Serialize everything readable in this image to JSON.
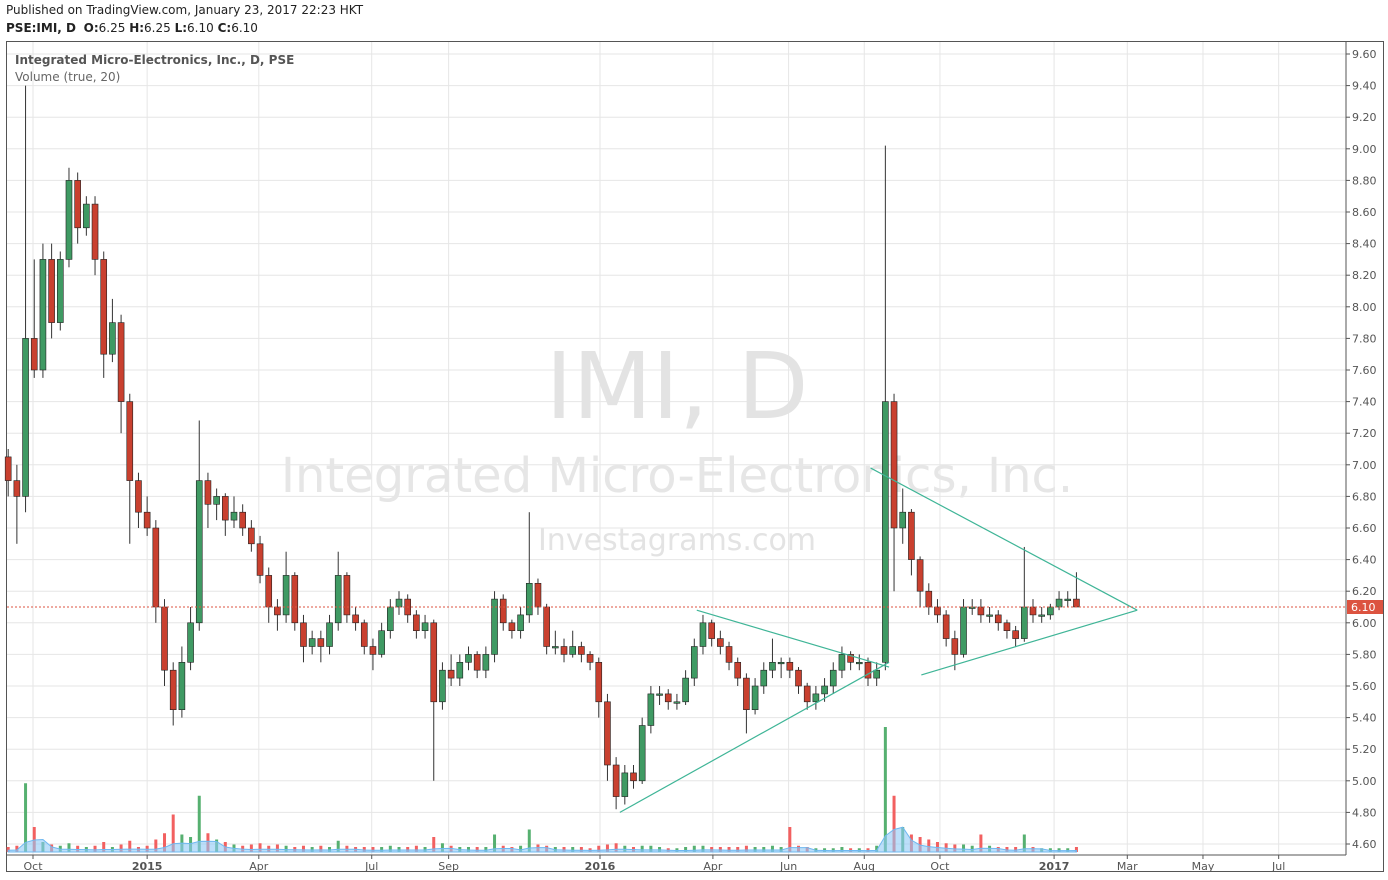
{
  "header": {
    "published": "Published on TradingView.com, January 23, 2017 22:23 HKT",
    "symbol": "PSE:IMI, D",
    "o_label": "O:",
    "o": "6.25",
    "h_label": "H:",
    "h": "6.25",
    "l_label": "L:",
    "l": "6.10",
    "c_label": "C:",
    "c": "6.10"
  },
  "legend": {
    "title": "Integrated Micro-Electronics, Inc., D, PSE",
    "volume": "Volume (true, 20)"
  },
  "watermark": {
    "symbol": "IMI, D",
    "name": "Integrated Micro-Electronics, Inc.",
    "site": "Investagrams.com"
  },
  "colors": {
    "up": "#3f9a63",
    "down": "#c9402f",
    "last_price": "#dc5340",
    "trendline": "#3fb597",
    "volume_ma": "#8fcaf7",
    "grid": "#e6e6e6"
  },
  "chart_data": {
    "type": "candlestick",
    "ylim": [
      4.5,
      9.65
    ],
    "y_ticks": [
      "4.60",
      "4.80",
      "5.00",
      "5.20",
      "5.40",
      "5.60",
      "5.80",
      "6.00",
      "6.20",
      "6.40",
      "6.60",
      "6.80",
      "7.00",
      "7.20",
      "7.40",
      "7.60",
      "7.80",
      "8.00",
      "8.20",
      "8.40",
      "8.60",
      "8.80",
      "9.00",
      "9.20",
      "9.40",
      "9.60"
    ],
    "x_ticks": [
      {
        "date": "2014-10-01",
        "label": "Oct",
        "bold": false
      },
      {
        "date": "2015-01-01",
        "label": "2015",
        "bold": true
      },
      {
        "date": "2015-04-01",
        "label": "Apr",
        "bold": false
      },
      {
        "date": "2015-07-01",
        "label": "Jul",
        "bold": false
      },
      {
        "date": "2015-09-01",
        "label": "Sep",
        "bold": false
      },
      {
        "date": "2016-01-01",
        "label": "2016",
        "bold": true
      },
      {
        "date": "2016-04-01",
        "label": "Apr",
        "bold": false
      },
      {
        "date": "2016-06-01",
        "label": "Jun",
        "bold": false
      },
      {
        "date": "2016-08-01",
        "label": "Aug",
        "bold": false
      },
      {
        "date": "2016-10-01",
        "label": "Oct",
        "bold": false
      },
      {
        "date": "2017-01-01",
        "label": "2017",
        "bold": true
      },
      {
        "date": "2017-03-01",
        "label": "Mar",
        "bold": false
      },
      {
        "date": "2017-05-01",
        "label": "May",
        "bold": false
      },
      {
        "date": "2017-07-01",
        "label": "Jul",
        "bold": false
      }
    ],
    "last_price": 6.1,
    "last_price_label": "6.10",
    "candle_fields": [
      "date",
      "open",
      "high",
      "low",
      "close",
      "volume_relative"
    ],
    "candles": [
      [
        "2014-09-11",
        7.05,
        7.1,
        6.8,
        6.9,
        4
      ],
      [
        "2014-09-18",
        6.9,
        7.0,
        6.5,
        6.8,
        5
      ],
      [
        "2014-09-25",
        6.8,
        9.4,
        6.7,
        7.8,
        55
      ],
      [
        "2014-10-02",
        7.8,
        8.3,
        7.55,
        7.6,
        20
      ],
      [
        "2014-10-09",
        7.6,
        8.4,
        7.55,
        8.3,
        8
      ],
      [
        "2014-10-16",
        8.3,
        8.4,
        7.8,
        7.9,
        6
      ],
      [
        "2014-10-23",
        7.9,
        8.35,
        7.85,
        8.3,
        5
      ],
      [
        "2014-10-30",
        8.3,
        8.88,
        8.25,
        8.8,
        7
      ],
      [
        "2014-11-06",
        8.8,
        8.85,
        8.4,
        8.5,
        5
      ],
      [
        "2014-11-13",
        8.5,
        8.7,
        8.45,
        8.65,
        4
      ],
      [
        "2014-11-20",
        8.65,
        8.7,
        8.2,
        8.3,
        5
      ],
      [
        "2014-11-27",
        8.3,
        8.35,
        7.55,
        7.7,
        8
      ],
      [
        "2014-12-04",
        7.7,
        8.05,
        7.65,
        7.9,
        4
      ],
      [
        "2014-12-11",
        7.9,
        7.95,
        7.2,
        7.4,
        6
      ],
      [
        "2014-12-18",
        7.4,
        7.45,
        6.5,
        6.9,
        9
      ],
      [
        "2014-12-25",
        6.9,
        6.95,
        6.6,
        6.7,
        4
      ],
      [
        "2015-01-01",
        6.7,
        6.8,
        6.55,
        6.6,
        5
      ],
      [
        "2015-01-08",
        6.6,
        6.65,
        6.0,
        6.1,
        10
      ],
      [
        "2015-01-15",
        6.1,
        6.15,
        5.6,
        5.7,
        15
      ],
      [
        "2015-01-22",
        5.7,
        5.75,
        5.35,
        5.45,
        30
      ],
      [
        "2015-01-29",
        5.45,
        5.85,
        5.4,
        5.75,
        14
      ],
      [
        "2015-02-05",
        5.75,
        6.1,
        5.7,
        6.0,
        12
      ],
      [
        "2015-02-12",
        6.0,
        7.28,
        5.95,
        6.9,
        45
      ],
      [
        "2015-02-19",
        6.9,
        6.95,
        6.6,
        6.75,
        15
      ],
      [
        "2015-02-26",
        6.75,
        6.85,
        6.65,
        6.8,
        10
      ],
      [
        "2015-03-05",
        6.8,
        6.82,
        6.55,
        6.65,
        8
      ],
      [
        "2015-03-12",
        6.65,
        6.8,
        6.6,
        6.7,
        6
      ],
      [
        "2015-03-19",
        6.7,
        6.75,
        6.55,
        6.6,
        5
      ],
      [
        "2015-03-26",
        6.6,
        6.65,
        6.45,
        6.5,
        6
      ],
      [
        "2015-04-02",
        6.5,
        6.55,
        6.25,
        6.3,
        7
      ],
      [
        "2015-04-09",
        6.3,
        6.35,
        6.0,
        6.1,
        5
      ],
      [
        "2015-04-16",
        6.1,
        6.15,
        5.95,
        6.05,
        6
      ],
      [
        "2015-04-23",
        6.05,
        6.45,
        6.0,
        6.3,
        5
      ],
      [
        "2015-04-30",
        6.3,
        6.32,
        5.95,
        6.0,
        4
      ],
      [
        "2015-05-07",
        6.0,
        6.05,
        5.75,
        5.85,
        5
      ],
      [
        "2015-05-14",
        5.85,
        5.95,
        5.8,
        5.9,
        4
      ],
      [
        "2015-05-21",
        5.9,
        5.95,
        5.75,
        5.85,
        5
      ],
      [
        "2015-05-28",
        5.85,
        6.05,
        5.8,
        6.0,
        4
      ],
      [
        "2015-06-04",
        6.0,
        6.45,
        5.95,
        6.3,
        9
      ],
      [
        "2015-06-11",
        6.3,
        6.32,
        6.0,
        6.05,
        5
      ],
      [
        "2015-06-18",
        6.05,
        6.1,
        5.95,
        6.0,
        4
      ],
      [
        "2015-06-25",
        6.0,
        6.02,
        5.8,
        5.85,
        4
      ],
      [
        "2015-07-02",
        5.85,
        5.9,
        5.7,
        5.8,
        4
      ],
      [
        "2015-07-09",
        5.8,
        6.0,
        5.78,
        5.95,
        4
      ],
      [
        "2015-07-16",
        5.95,
        6.15,
        5.9,
        6.1,
        5
      ],
      [
        "2015-07-23",
        6.1,
        6.2,
        6.05,
        6.15,
        4
      ],
      [
        "2015-07-30",
        6.15,
        6.18,
        6.0,
        6.05,
        4
      ],
      [
        "2015-08-06",
        6.05,
        6.08,
        5.9,
        5.95,
        5
      ],
      [
        "2015-08-13",
        5.95,
        6.05,
        5.9,
        6.0,
        4
      ],
      [
        "2015-08-20",
        6.0,
        6.02,
        5.0,
        5.5,
        12
      ],
      [
        "2015-08-27",
        5.5,
        5.75,
        5.45,
        5.7,
        7
      ],
      [
        "2015-09-03",
        5.7,
        5.8,
        5.6,
        5.65,
        5
      ],
      [
        "2015-09-10",
        5.65,
        5.8,
        5.6,
        5.75,
        4
      ],
      [
        "2015-09-17",
        5.75,
        5.85,
        5.7,
        5.8,
        4
      ],
      [
        "2015-09-24",
        5.8,
        5.82,
        5.65,
        5.7,
        4
      ],
      [
        "2015-10-01",
        5.7,
        5.85,
        5.65,
        5.8,
        4
      ],
      [
        "2015-10-08",
        5.8,
        6.2,
        5.75,
        6.15,
        14
      ],
      [
        "2015-10-15",
        6.15,
        6.18,
        5.95,
        6.0,
        5
      ],
      [
        "2015-10-22",
        6.0,
        6.02,
        5.9,
        5.95,
        4
      ],
      [
        "2015-10-29",
        5.95,
        6.1,
        5.9,
        6.05,
        5
      ],
      [
        "2015-11-05",
        6.05,
        6.7,
        6.0,
        6.25,
        18
      ],
      [
        "2015-11-12",
        6.25,
        6.28,
        6.05,
        6.1,
        6
      ],
      [
        "2015-11-19",
        6.1,
        6.12,
        5.8,
        5.85,
        5
      ],
      [
        "2015-11-26",
        5.85,
        5.95,
        5.8,
        5.85,
        4
      ],
      [
        "2015-12-03",
        5.85,
        5.9,
        5.75,
        5.8,
        4
      ],
      [
        "2015-12-10",
        5.8,
        5.95,
        5.78,
        5.85,
        4
      ],
      [
        "2015-12-17",
        5.85,
        5.88,
        5.75,
        5.8,
        4
      ],
      [
        "2015-12-24",
        5.8,
        5.82,
        5.7,
        5.75,
        3
      ],
      [
        "2015-12-31",
        5.75,
        5.78,
        5.4,
        5.5,
        5
      ],
      [
        "2016-01-07",
        5.5,
        5.55,
        5.0,
        5.1,
        6
      ],
      [
        "2016-01-14",
        5.1,
        5.15,
        4.82,
        4.9,
        7
      ],
      [
        "2016-01-21",
        4.9,
        5.1,
        4.85,
        5.05,
        5
      ],
      [
        "2016-01-28",
        5.05,
        5.1,
        4.95,
        5.0,
        4
      ],
      [
        "2016-02-04",
        5.0,
        5.4,
        4.98,
        5.35,
        5
      ],
      [
        "2016-02-11",
        5.35,
        5.6,
        5.3,
        5.55,
        5
      ],
      [
        "2016-02-18",
        5.55,
        5.6,
        5.48,
        5.55,
        4
      ],
      [
        "2016-02-25",
        5.55,
        5.58,
        5.45,
        5.5,
        3
      ],
      [
        "2016-03-03",
        5.5,
        5.55,
        5.45,
        5.5,
        3
      ],
      [
        "2016-03-10",
        5.5,
        5.7,
        5.48,
        5.65,
        4
      ],
      [
        "2016-03-17",
        5.65,
        5.9,
        5.6,
        5.85,
        5
      ],
      [
        "2016-03-24",
        5.85,
        6.05,
        5.8,
        6.0,
        5
      ],
      [
        "2016-03-31",
        6.0,
        6.02,
        5.85,
        5.9,
        4
      ],
      [
        "2016-04-07",
        5.9,
        5.95,
        5.8,
        5.85,
        4
      ],
      [
        "2016-04-14",
        5.85,
        5.88,
        5.7,
        5.75,
        4
      ],
      [
        "2016-04-21",
        5.75,
        5.78,
        5.6,
        5.65,
        4
      ],
      [
        "2016-04-28",
        5.65,
        5.68,
        5.3,
        5.45,
        5
      ],
      [
        "2016-05-05",
        5.45,
        5.65,
        5.42,
        5.6,
        4
      ],
      [
        "2016-05-12",
        5.6,
        5.75,
        5.55,
        5.7,
        4
      ],
      [
        "2016-05-19",
        5.7,
        5.9,
        5.65,
        5.75,
        5
      ],
      [
        "2016-05-26",
        5.75,
        5.78,
        5.65,
        5.75,
        4
      ],
      [
        "2016-06-02",
        5.75,
        5.78,
        5.65,
        5.7,
        20
      ],
      [
        "2016-06-09",
        5.7,
        5.72,
        5.55,
        5.6,
        5
      ],
      [
        "2016-06-16",
        5.6,
        5.62,
        5.45,
        5.5,
        4
      ],
      [
        "2016-06-23",
        5.5,
        5.6,
        5.45,
        5.55,
        3
      ],
      [
        "2016-06-30",
        5.55,
        5.65,
        5.5,
        5.6,
        3
      ],
      [
        "2016-07-07",
        5.6,
        5.75,
        5.55,
        5.7,
        3
      ],
      [
        "2016-07-14",
        5.7,
        5.85,
        5.65,
        5.8,
        4
      ],
      [
        "2016-07-21",
        5.8,
        5.82,
        5.7,
        5.75,
        3
      ],
      [
        "2016-07-28",
        5.75,
        5.8,
        5.7,
        5.75,
        3
      ],
      [
        "2016-08-04",
        5.75,
        5.78,
        5.6,
        5.65,
        3
      ],
      [
        "2016-08-11",
        5.65,
        5.75,
        5.6,
        5.7,
        5
      ],
      [
        "2016-08-18",
        5.75,
        9.02,
        5.7,
        7.4,
        100
      ],
      [
        "2016-08-25",
        7.4,
        7.45,
        6.2,
        6.6,
        45
      ],
      [
        "2016-09-01",
        6.6,
        6.85,
        6.5,
        6.7,
        20
      ],
      [
        "2016-09-08",
        6.7,
        6.72,
        6.3,
        6.4,
        14
      ],
      [
        "2016-09-15",
        6.4,
        6.42,
        6.1,
        6.2,
        12
      ],
      [
        "2016-09-22",
        6.2,
        6.25,
        6.05,
        6.1,
        10
      ],
      [
        "2016-09-29",
        6.1,
        6.15,
        6.0,
        6.05,
        8
      ],
      [
        "2016-10-06",
        6.05,
        6.08,
        5.85,
        5.9,
        7
      ],
      [
        "2016-10-13",
        5.9,
        5.95,
        5.7,
        5.8,
        6
      ],
      [
        "2016-10-20",
        5.8,
        6.15,
        5.78,
        6.1,
        6
      ],
      [
        "2016-10-27",
        6.1,
        6.15,
        6.05,
        6.1,
        5
      ],
      [
        "2016-11-03",
        6.1,
        6.15,
        6.0,
        6.05,
        14
      ],
      [
        "2016-11-10",
        6.05,
        6.1,
        6.0,
        6.05,
        5
      ],
      [
        "2016-11-17",
        6.05,
        6.08,
        5.95,
        6.0,
        4
      ],
      [
        "2016-11-24",
        6.0,
        6.02,
        5.9,
        5.95,
        4
      ],
      [
        "2016-12-01",
        5.95,
        5.98,
        5.85,
        5.9,
        4
      ],
      [
        "2016-12-08",
        5.9,
        6.48,
        5.88,
        6.1,
        14
      ],
      [
        "2016-12-15",
        6.1,
        6.15,
        6.0,
        6.05,
        4
      ],
      [
        "2016-12-22",
        6.05,
        6.1,
        6.0,
        6.05,
        3
      ],
      [
        "2016-12-29",
        6.05,
        6.12,
        6.02,
        6.1,
        3
      ],
      [
        "2017-01-05",
        6.1,
        6.2,
        6.08,
        6.15,
        3
      ],
      [
        "2017-01-12",
        6.15,
        6.2,
        6.1,
        6.15,
        3
      ],
      [
        "2017-01-19",
        6.15,
        6.32,
        6.1,
        6.1,
        4
      ]
    ],
    "trendlines": [
      {
        "from": [
          "2016-01-17",
          4.8
        ],
        "to": [
          "2016-08-21",
          5.75
        ]
      },
      {
        "from": [
          "2016-03-19",
          6.08
        ],
        "to": [
          "2016-08-21",
          5.72
        ]
      },
      {
        "from": [
          "2016-08-06",
          6.98
        ],
        "to": [
          "2017-03-09",
          6.08
        ]
      },
      {
        "from": [
          "2016-09-16",
          5.67
        ],
        "to": [
          "2017-03-09",
          6.08
        ]
      }
    ]
  }
}
